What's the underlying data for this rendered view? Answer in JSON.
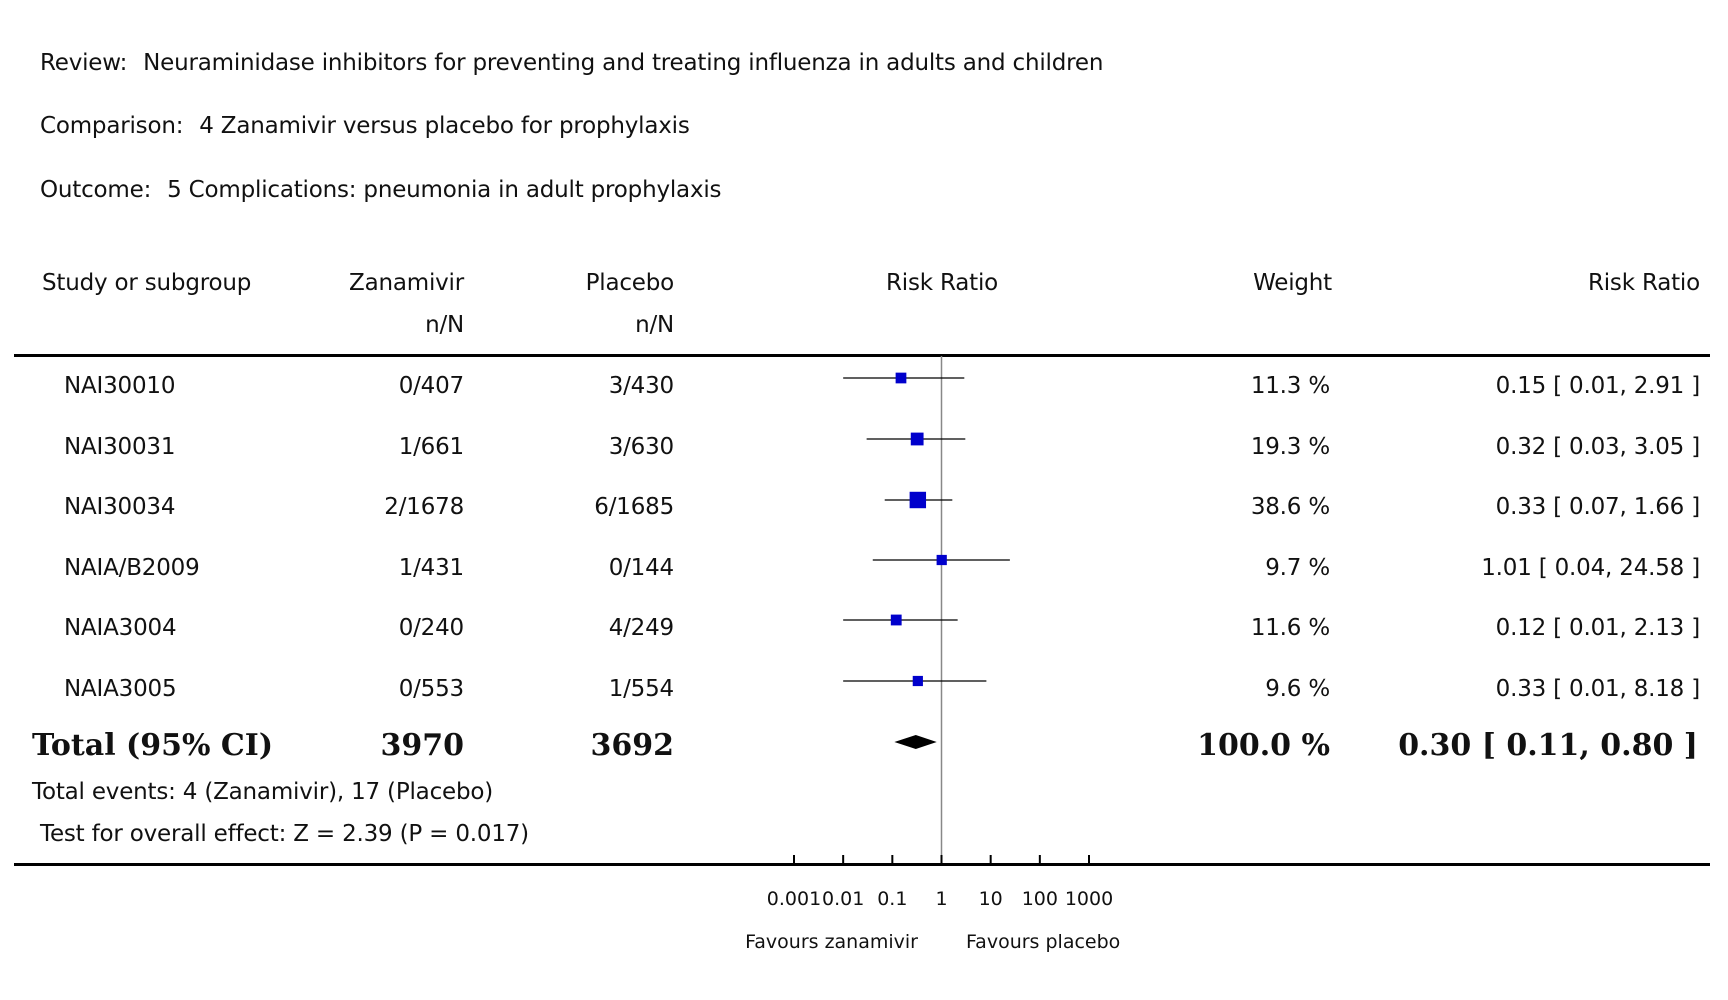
{
  "header": {
    "review_label": "Review:",
    "review_value": "Neuraminidase inhibitors for preventing and treating influenza in adults and children",
    "comparison_label": "Comparison:",
    "comparison_value": "4 Zanamivir versus placebo for prophylaxis",
    "outcome_label": "Outcome:",
    "outcome_value": "5 Complications: pneumonia in adult prophylaxis"
  },
  "columns": {
    "study": "Study or subgroup",
    "treat": "Zanamivir",
    "treat_sub": "n/N",
    "control": "Placebo",
    "control_sub": "n/N",
    "plot": "Risk Ratio",
    "weight": "Weight",
    "rr": "Risk Ratio"
  },
  "total": {
    "label": "Total (95% CI)",
    "treat": "3970",
    "control": "3692",
    "weight": "100.0 %",
    "rr": "0.30 [ 0.11, 0.80 ]",
    "events": "Total events: 4 (Zanamivir), 17 (Placebo)",
    "test": "Test for overall effect: Z = 2.39 (P = 0.017)"
  },
  "footer": {
    "favours_left": "Favours zanamivir",
    "favours_right": "Favours placebo"
  },
  "chart_data": {
    "type": "forest",
    "scale": "log",
    "xlim": [
      0.001,
      1000
    ],
    "x_ticks": [
      "0.001",
      "0.01",
      "0.1",
      "1",
      "10",
      "100",
      "1000"
    ],
    "x_tick_values": [
      0.001,
      0.01,
      0.1,
      1,
      10,
      100,
      1000
    ],
    "studies": [
      {
        "name": "NAI30010",
        "treat": "0/407",
        "control": "3/430",
        "weight": "11.3 %",
        "weight_value": 11.3,
        "rr_text": "0.15 [ 0.01, 2.91 ]",
        "rr": 0.15,
        "lo": 0.01,
        "hi": 2.91
      },
      {
        "name": "NAI30031",
        "treat": "1/661",
        "control": "3/630",
        "weight": "19.3 %",
        "weight_value": 19.3,
        "rr_text": "0.32 [ 0.03, 3.05 ]",
        "rr": 0.32,
        "lo": 0.03,
        "hi": 3.05
      },
      {
        "name": "NAI30034",
        "treat": "2/1678",
        "control": "6/1685",
        "weight": "38.6 %",
        "weight_value": 38.6,
        "rr_text": "0.33 [ 0.07, 1.66 ]",
        "rr": 0.33,
        "lo": 0.07,
        "hi": 1.66
      },
      {
        "name": "NAIA/B2009",
        "treat": "1/431",
        "control": "0/144",
        "weight": "9.7 %",
        "weight_value": 9.7,
        "rr_text": "1.01 [ 0.04, 24.58 ]",
        "rr": 1.01,
        "lo": 0.04,
        "hi": 24.58
      },
      {
        "name": "NAIA3004",
        "treat": "0/240",
        "control": "4/249",
        "weight": "11.6 %",
        "weight_value": 11.6,
        "rr_text": "0.12 [ 0.01, 2.13 ]",
        "rr": 0.12,
        "lo": 0.01,
        "hi": 2.13
      },
      {
        "name": "NAIA3005",
        "treat": "0/553",
        "control": "1/554",
        "weight": "9.6 %",
        "weight_value": 9.6,
        "rr_text": "0.33 [ 0.01, 8.18 ]",
        "rr": 0.33,
        "lo": 0.01,
        "hi": 8.18
      }
    ],
    "pooled": {
      "rr": 0.3,
      "lo": 0.11,
      "hi": 0.8
    },
    "colors": {
      "marker": "#0000cc",
      "line": "#000000",
      "null_line": "#888888",
      "diamond": "#000000"
    }
  }
}
